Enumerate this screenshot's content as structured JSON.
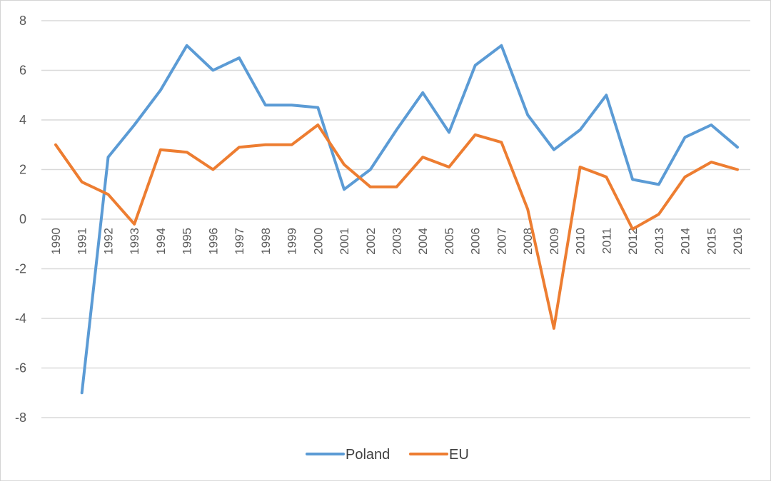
{
  "chart_data": {
    "type": "line",
    "title": "",
    "xlabel": "",
    "ylabel": "",
    "ylim": [
      -8,
      8
    ],
    "yticks": [
      "8",
      "6",
      "4",
      "2",
      "0",
      "-2",
      "-4",
      "-6",
      "-8"
    ],
    "ytick_values": [
      8,
      6,
      4,
      2,
      0,
      -2,
      -4,
      -6,
      -8
    ],
    "grid": true,
    "legend_position": "bottom",
    "categories": [
      "1990",
      "1991",
      "1992",
      "1993",
      "1994",
      "1995",
      "1996",
      "1997",
      "1998",
      "1999",
      "2000",
      "2001",
      "2002",
      "2003",
      "2004",
      "2005",
      "2006",
      "2007",
      "2008",
      "2009",
      "2010",
      "2011",
      "2012",
      "2013",
      "2014",
      "2015",
      "2016"
    ],
    "series": [
      {
        "name": "Poland",
        "color": "#5b9bd5",
        "values": [
          null,
          -7.0,
          2.5,
          3.8,
          5.2,
          7.0,
          6.0,
          6.5,
          4.6,
          4.6,
          4.5,
          1.2,
          2.0,
          3.6,
          5.1,
          3.5,
          6.2,
          7.0,
          4.2,
          2.8,
          3.6,
          5.0,
          1.6,
          1.4,
          3.3,
          3.8,
          2.9
        ]
      },
      {
        "name": "EU",
        "color": "#ed7d31",
        "values": [
          3.0,
          1.5,
          1.0,
          -0.2,
          2.8,
          2.7,
          2.0,
          2.9,
          3.0,
          3.0,
          3.8,
          2.2,
          1.3,
          1.3,
          2.5,
          2.1,
          3.4,
          3.1,
          0.4,
          -4.4,
          2.1,
          1.7,
          -0.4,
          0.2,
          1.7,
          2.3,
          2.0
        ]
      }
    ]
  }
}
